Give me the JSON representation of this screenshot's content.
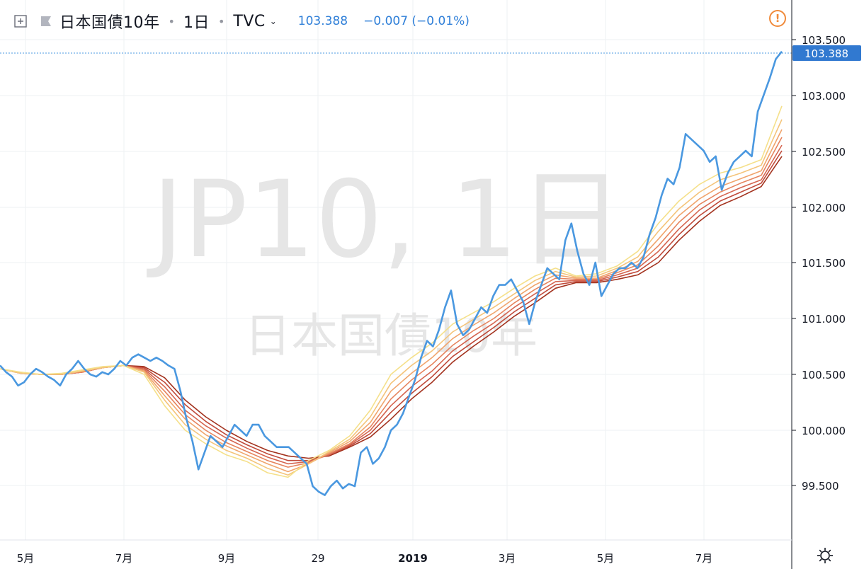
{
  "header": {
    "symbol": "日本国債10年",
    "interval": "1日",
    "exchange": "TVC",
    "last_price": "103.388",
    "change": "−0.007 (−0.01%)"
  },
  "watermark": {
    "main": "JP10, 1日",
    "sub": "日本国債10年"
  },
  "price_tag": "103.388",
  "colors": {
    "price_line": "#4a98e0",
    "ema_fast": "#f5e08a",
    "ema_slow": "#a3321e",
    "price_tag_bg": "#3179d0",
    "alert": "#f08a3a"
  },
  "icons": [
    "plus-square-icon",
    "flag-icon",
    "chevron-down-icon",
    "alert-icon",
    "settings-icon"
  ],
  "chart_data": {
    "type": "line",
    "title": "",
    "xlabel": "",
    "ylabel": "",
    "ylim": [
      99.1,
      103.55
    ],
    "x_ticks": [
      "5月",
      "7月",
      "9月",
      "29",
      "2019",
      "3月",
      "5月",
      "7月"
    ],
    "y_ticks": [
      "99.500",
      "100.000",
      "100.500",
      "101.000",
      "101.500",
      "102.000",
      "102.500",
      "103.000",
      "103.500"
    ],
    "grid": true,
    "series": [
      {
        "role": "price",
        "values": [
          100.58,
          100.52,
          100.48,
          100.4,
          100.43,
          100.5,
          100.55,
          100.52,
          100.48,
          100.45,
          100.4,
          100.5,
          100.55,
          100.62,
          100.55,
          100.5,
          100.48,
          100.52,
          100.5,
          100.55,
          100.62,
          100.58,
          100.65,
          100.68,
          100.65,
          100.62,
          100.65,
          100.62,
          100.58,
          100.55,
          100.35,
          100.1,
          99.9,
          99.65,
          99.8,
          99.95,
          99.9,
          99.85,
          99.95,
          100.05,
          100.0,
          99.95,
          100.05,
          100.05,
          99.95,
          99.9,
          99.85,
          99.85,
          99.85,
          99.8,
          99.75,
          99.7,
          99.5,
          99.45,
          99.42,
          99.5,
          99.55,
          99.48,
          99.52,
          99.5,
          99.8,
          99.85,
          99.7,
          99.75,
          99.85,
          100.0,
          100.05,
          100.15,
          100.3,
          100.45,
          100.65,
          100.8,
          100.75,
          100.9,
          101.1,
          101.25,
          100.95,
          100.85,
          100.9,
          101.0,
          101.1,
          101.05,
          101.2,
          101.3,
          101.3,
          101.35,
          101.25,
          101.15,
          100.95,
          101.15,
          101.3,
          101.45,
          101.4,
          101.35,
          101.7,
          101.85,
          101.6,
          101.4,
          101.3,
          101.5,
          101.2,
          101.3,
          101.4,
          101.45,
          101.45,
          101.5,
          101.45,
          101.55,
          101.75,
          101.9,
          102.1,
          102.25,
          102.2,
          102.35,
          102.65,
          102.6,
          102.55,
          102.5,
          102.4,
          102.45,
          102.15,
          102.3,
          102.4,
          102.45,
          102.5,
          102.45,
          102.85,
          103.0,
          103.15,
          103.32,
          103.388
        ]
      },
      {
        "role": "ema-fast",
        "values": [
          100.55,
          100.52,
          100.5,
          100.51,
          100.54,
          100.57,
          100.58,
          100.5,
          100.22,
          100.0,
          99.88,
          99.78,
          99.72,
          99.62,
          99.58,
          99.73,
          99.82,
          99.95,
          100.18,
          100.5,
          100.65,
          100.78,
          100.95,
          101.05,
          101.15,
          101.27,
          101.38,
          101.45,
          101.38,
          101.4,
          101.47,
          101.6,
          101.85,
          102.05,
          102.2,
          102.3,
          102.35,
          102.42,
          102.9
        ]
      },
      {
        "role": "ema-mid-1",
        "values": [
          100.55,
          100.51,
          100.5,
          100.5,
          100.53,
          100.56,
          100.58,
          100.52,
          100.27,
          100.05,
          99.92,
          99.82,
          99.75,
          99.66,
          99.6,
          99.7,
          99.81,
          99.92,
          100.12,
          100.42,
          100.58,
          100.71,
          100.88,
          100.99,
          101.1,
          101.22,
          101.34,
          101.42,
          101.37,
          101.38,
          101.45,
          101.55,
          101.78,
          101.98,
          102.13,
          102.24,
          102.3,
          102.37,
          102.78
        ]
      },
      {
        "role": "ema-mid-2",
        "values": [
          100.55,
          100.51,
          100.5,
          100.5,
          100.53,
          100.56,
          100.58,
          100.53,
          100.31,
          100.1,
          99.96,
          99.86,
          99.78,
          99.7,
          99.63,
          99.7,
          99.8,
          99.9,
          100.07,
          100.35,
          100.51,
          100.65,
          100.82,
          100.94,
          101.05,
          101.18,
          101.3,
          101.39,
          101.36,
          101.36,
          101.43,
          101.51,
          101.71,
          101.92,
          102.07,
          102.18,
          102.25,
          102.32,
          102.69
        ]
      },
      {
        "role": "ema-mid-3",
        "values": [
          100.55,
          100.51,
          100.5,
          100.5,
          100.52,
          100.56,
          100.58,
          100.54,
          100.35,
          100.14,
          100.0,
          99.89,
          99.81,
          99.73,
          99.67,
          99.71,
          99.79,
          99.88,
          100.03,
          100.28,
          100.45,
          100.59,
          100.76,
          100.89,
          101.0,
          101.14,
          101.26,
          101.36,
          101.35,
          101.35,
          101.41,
          101.48,
          101.65,
          101.86,
          102.02,
          102.13,
          102.21,
          102.28,
          102.62
        ]
      },
      {
        "role": "ema-mid-4",
        "values": [
          100.55,
          100.51,
          100.5,
          100.5,
          100.52,
          100.56,
          100.58,
          100.55,
          100.39,
          100.18,
          100.04,
          99.93,
          99.84,
          99.76,
          99.7,
          99.72,
          99.78,
          99.87,
          100.0,
          100.22,
          100.39,
          100.53,
          100.71,
          100.84,
          100.96,
          101.1,
          101.22,
          101.33,
          101.34,
          101.34,
          101.39,
          101.45,
          101.6,
          101.8,
          101.97,
          102.09,
          102.17,
          102.24,
          102.55
        ]
      },
      {
        "role": "ema-mid-5",
        "values": [
          100.55,
          100.51,
          100.5,
          100.5,
          100.52,
          100.56,
          100.58,
          100.56,
          100.43,
          100.23,
          100.08,
          99.96,
          99.87,
          99.79,
          99.73,
          99.73,
          99.78,
          99.86,
          99.97,
          100.16,
          100.33,
          100.48,
          100.66,
          100.79,
          100.92,
          101.06,
          101.18,
          101.3,
          101.33,
          101.33,
          101.37,
          101.42,
          101.55,
          101.75,
          101.92,
          102.05,
          102.13,
          102.21,
          102.5
        ]
      },
      {
        "role": "ema-slow",
        "values": [
          100.55,
          100.51,
          100.5,
          100.5,
          100.52,
          100.56,
          100.58,
          100.57,
          100.47,
          100.27,
          100.12,
          100.0,
          99.9,
          99.82,
          99.77,
          99.75,
          99.77,
          99.85,
          99.94,
          100.1,
          100.28,
          100.43,
          100.61,
          100.75,
          100.88,
          101.02,
          101.14,
          101.27,
          101.32,
          101.32,
          101.35,
          101.39,
          101.5,
          101.7,
          101.87,
          102.01,
          102.09,
          102.18,
          102.45
        ]
      }
    ]
  }
}
